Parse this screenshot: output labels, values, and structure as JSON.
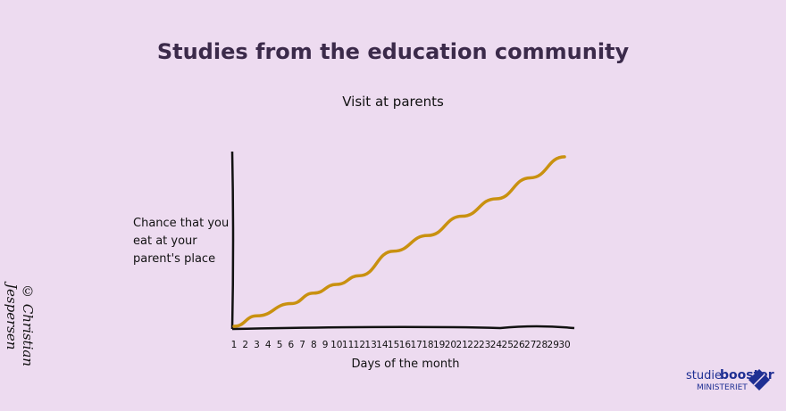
{
  "header": {
    "title": "Studies from the education community"
  },
  "credit": "© Christian Jespersen",
  "logo": {
    "text1": "studie",
    "text2": "booster",
    "text3": "MINISTERIET",
    "color": "#1e2f93"
  },
  "chart_data": {
    "type": "line",
    "title": "Visit at parents",
    "xlabel": "Days of the month",
    "ylabel": [
      "Chance that you",
      "eat at your",
      "parent's place"
    ],
    "x": [
      1,
      3,
      6,
      8,
      10,
      12,
      15,
      18,
      21,
      24,
      27,
      30
    ],
    "y": [
      1,
      7,
      14,
      20,
      25,
      30,
      44,
      53,
      64,
      74,
      86,
      98
    ],
    "xticks": [
      1,
      2,
      3,
      4,
      5,
      6,
      7,
      8,
      9,
      10,
      11,
      12,
      13,
      14,
      15,
      16,
      17,
      18,
      19,
      20,
      21,
      22,
      23,
      24,
      25,
      26,
      27,
      28,
      29,
      30
    ],
    "xlim": [
      1,
      30
    ],
    "ylim": [
      0,
      100
    ],
    "line_color": "#c99110",
    "grid": false
  }
}
